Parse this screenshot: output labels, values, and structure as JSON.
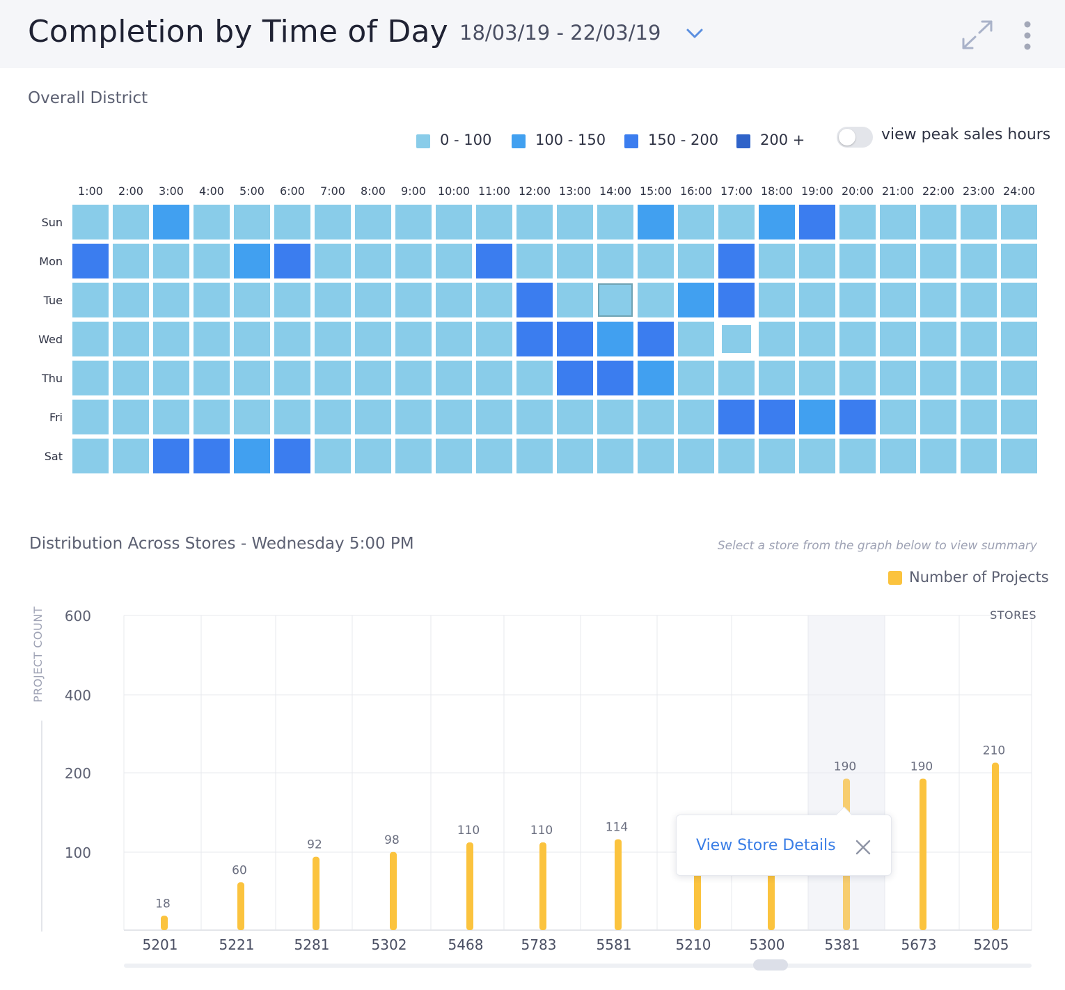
{
  "header": {
    "title": "Completion by Time of Day",
    "date_range": "18/03/19 - 22/03/19"
  },
  "icons": {
    "date_dropdown": "chevron-down-icon",
    "expand": "expand-arrows-icon",
    "menu": "kebab-menu-icon",
    "close": "close-icon"
  },
  "colors": {
    "bin_0_100": "#89cce9",
    "bin_100_150": "#41a0f0",
    "bin_150_200": "#3b7def",
    "bin_200_plus": "#2f63c9",
    "bar": "#fbc33e",
    "accent": "#3a7ee6"
  },
  "heatmap": {
    "section_title": "Overall District",
    "legend": [
      "0 - 100",
      "100 - 150",
      "150 - 200",
      "200 +"
    ],
    "toggle_label": "view peak sales hours",
    "toggle_on": false
  },
  "distribution": {
    "title": "Distribution Across Stores - Wednesday 5:00 PM",
    "hint": "Select a store from the graph below to view summary",
    "legend_label": "Number of Projects",
    "popup_link": "View Store Details",
    "popup_store": "5381"
  },
  "chart_data": [
    {
      "type": "heatmap",
      "x": [
        "1:00",
        "2:00",
        "3:00",
        "4:00",
        "5:00",
        "6:00",
        "7:00",
        "8:00",
        "9:00",
        "10:00",
        "11:00",
        "12:00",
        "13:00",
        "14:00",
        "15:00",
        "16:00",
        "17:00",
        "18:00",
        "19:00",
        "20:00",
        "21:00",
        "22:00",
        "23:00",
        "24:00"
      ],
      "y": [
        "Sun",
        "Mon",
        "Tue",
        "Wed",
        "Thu",
        "Fri",
        "Sat"
      ],
      "bins": [
        "0 - 100",
        "100 - 150",
        "150 - 200",
        "200 +"
      ],
      "values": [
        [
          0,
          0,
          1,
          0,
          0,
          0,
          0,
          0,
          0,
          0,
          0,
          0,
          0,
          0,
          1,
          0,
          0,
          1,
          2,
          0,
          0,
          0,
          0,
          0
        ],
        [
          2,
          0,
          0,
          0,
          1,
          2,
          0,
          0,
          0,
          0,
          2,
          0,
          0,
          0,
          0,
          0,
          2,
          0,
          0,
          0,
          0,
          0,
          0,
          0
        ],
        [
          0,
          0,
          0,
          0,
          0,
          0,
          0,
          0,
          0,
          0,
          0,
          2,
          0,
          0,
          0,
          1,
          2,
          0,
          0,
          0,
          0,
          0,
          0,
          0
        ],
        [
          0,
          0,
          0,
          0,
          0,
          0,
          0,
          0,
          0,
          0,
          0,
          2,
          2,
          1,
          2,
          0,
          0,
          0,
          0,
          0,
          0,
          0,
          0,
          0
        ],
        [
          0,
          0,
          0,
          0,
          0,
          0,
          0,
          0,
          0,
          0,
          0,
          0,
          2,
          2,
          1,
          0,
          0,
          0,
          0,
          0,
          0,
          0,
          0,
          0
        ],
        [
          0,
          0,
          0,
          0,
          0,
          0,
          0,
          0,
          0,
          0,
          0,
          0,
          0,
          0,
          0,
          0,
          2,
          2,
          1,
          2,
          0,
          0,
          0,
          0
        ],
        [
          0,
          0,
          2,
          2,
          1,
          2,
          0,
          0,
          0,
          0,
          0,
          0,
          0,
          0,
          0,
          0,
          0,
          0,
          0,
          0,
          0,
          0,
          0,
          0
        ]
      ],
      "hovered_cell": {
        "day": "Tue",
        "hour": "14:00"
      },
      "selected_cell": {
        "day": "Wed",
        "hour": "17:00"
      }
    },
    {
      "type": "bar",
      "categories": [
        "5201",
        "5221",
        "5281",
        "5302",
        "5468",
        "5783",
        "5581",
        "5210",
        "5300",
        "5381",
        "5673",
        "5205"
      ],
      "series": [
        {
          "name": "Number of Projects",
          "values": [
            18,
            60,
            92,
            98,
            110,
            110,
            114,
            116,
            119,
            190,
            190,
            210
          ]
        }
      ],
      "ylabel": "PROJECT COUNT",
      "xlabel": "STORES",
      "yticks": [
        100,
        200,
        400,
        600
      ],
      "ylim": [
        0,
        600
      ],
      "highlighted_category": "5381",
      "grid": true
    }
  ]
}
